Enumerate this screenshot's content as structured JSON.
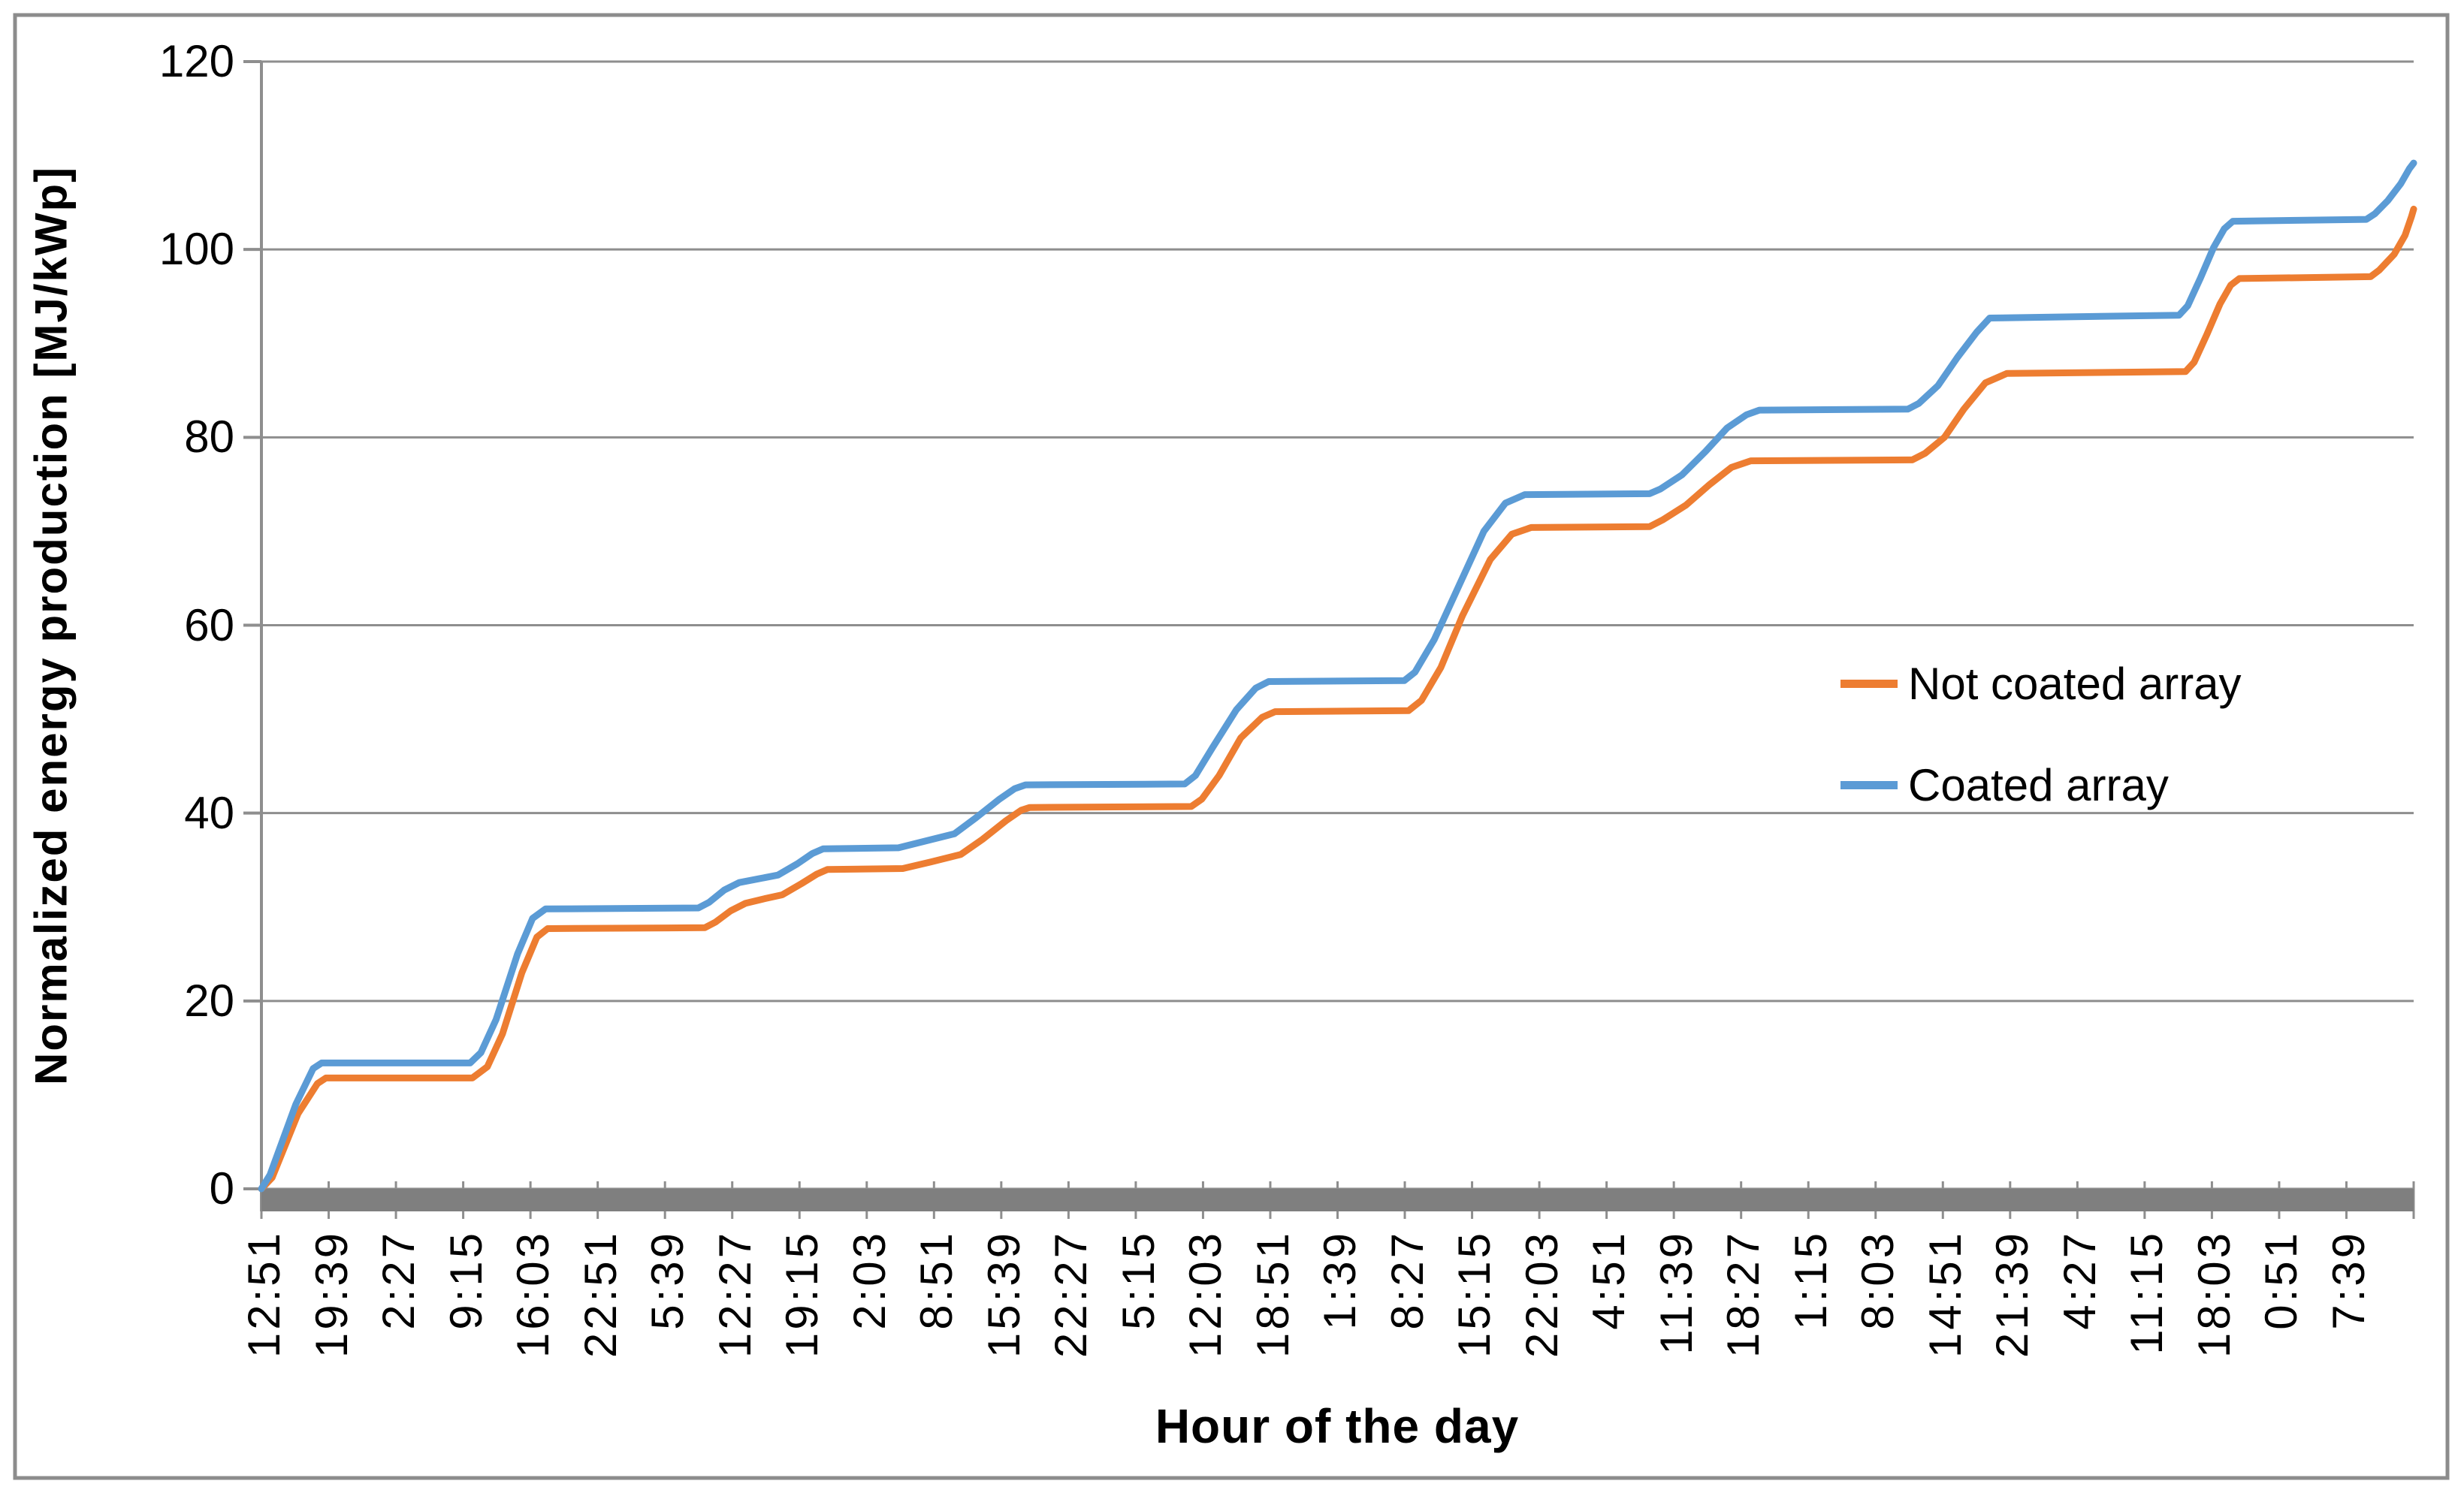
{
  "figure": {
    "background": "#ffffff",
    "border_color": "#8c8c8c",
    "gridline_color": "#8e8e8e",
    "axis_color": "#8e8e8e",
    "x_band_color": "#7f7f7f",
    "text_color": "#000000"
  },
  "chart_data": {
    "type": "line",
    "title": "",
    "xlabel": "Hour of the day",
    "ylabel": "Normalized energy production [MJ/kWp]",
    "ylim": [
      0,
      120
    ],
    "y_ticks": [
      0,
      20,
      40,
      60,
      80,
      100,
      120
    ],
    "grid": "horizontal",
    "legend_position": "middle-right",
    "x_label_rotation": -90,
    "x_tick_labels": [
      "12:51",
      "19:39",
      "2:27",
      "9:15",
      "16:03",
      "22:51",
      "5:39",
      "12:27",
      "19:15",
      "2:03",
      "8:51",
      "15:39",
      "22:27",
      "5:15",
      "12:03",
      "18:51",
      "1:39",
      "8:27",
      "15:15",
      "22:03",
      "4:51",
      "11:39",
      "18:27",
      "1:15",
      "8:03",
      "14:51",
      "21:39",
      "4:27",
      "11:15",
      "18:03",
      "0:51",
      "7:39"
    ],
    "series": [
      {
        "name": "Not coated array",
        "color": "#ED7D31",
        "points": [
          [
            0.0,
            0
          ],
          [
            0.005,
            1.2
          ],
          [
            0.017,
            8
          ],
          [
            0.026,
            11.2
          ],
          [
            0.03,
            11.8
          ],
          [
            0.098,
            11.8
          ],
          [
            0.105,
            13
          ],
          [
            0.112,
            16.5
          ],
          [
            0.121,
            23
          ],
          [
            0.128,
            26.8
          ],
          [
            0.133,
            27.7
          ],
          [
            0.206,
            27.8
          ],
          [
            0.211,
            28.4
          ],
          [
            0.218,
            29.6
          ],
          [
            0.225,
            30.4
          ],
          [
            0.234,
            30.9
          ],
          [
            0.242,
            31.3
          ],
          [
            0.251,
            32.5
          ],
          [
            0.258,
            33.5
          ],
          [
            0.263,
            34.0
          ],
          [
            0.298,
            34.1
          ],
          [
            0.311,
            34.8
          ],
          [
            0.325,
            35.6
          ],
          [
            0.335,
            37.2
          ],
          [
            0.346,
            39.2
          ],
          [
            0.353,
            40.3
          ],
          [
            0.357,
            40.6
          ],
          [
            0.432,
            40.7
          ],
          [
            0.437,
            41.5
          ],
          [
            0.445,
            44
          ],
          [
            0.455,
            48
          ],
          [
            0.465,
            50.2
          ],
          [
            0.471,
            50.8
          ],
          [
            0.533,
            50.9
          ],
          [
            0.539,
            52
          ],
          [
            0.548,
            55.5
          ],
          [
            0.558,
            61
          ],
          [
            0.571,
            67
          ],
          [
            0.581,
            69.7
          ],
          [
            0.59,
            70.4
          ],
          [
            0.645,
            70.5
          ],
          [
            0.651,
            71.2
          ],
          [
            0.662,
            72.8
          ],
          [
            0.673,
            75
          ],
          [
            0.683,
            76.8
          ],
          [
            0.692,
            77.5
          ],
          [
            0.767,
            77.6
          ],
          [
            0.773,
            78.3
          ],
          [
            0.782,
            80
          ],
          [
            0.791,
            83
          ],
          [
            0.801,
            85.8
          ],
          [
            0.811,
            86.8
          ],
          [
            0.894,
            87.0
          ],
          [
            0.898,
            88
          ],
          [
            0.904,
            91
          ],
          [
            0.91,
            94.2
          ],
          [
            0.915,
            96.2
          ],
          [
            0.919,
            96.9
          ],
          [
            0.98,
            97.1
          ],
          [
            0.984,
            97.8
          ],
          [
            0.991,
            99.5
          ],
          [
            0.996,
            101.5
          ],
          [
            0.999,
            103.5
          ],
          [
            1.0,
            104.3
          ]
        ]
      },
      {
        "name": "Coated array",
        "color": "#5B9BD5",
        "points": [
          [
            0.0,
            0
          ],
          [
            0.004,
            1.5
          ],
          [
            0.016,
            9
          ],
          [
            0.024,
            12.8
          ],
          [
            0.028,
            13.4
          ],
          [
            0.097,
            13.4
          ],
          [
            0.102,
            14.5
          ],
          [
            0.109,
            18
          ],
          [
            0.119,
            25
          ],
          [
            0.126,
            28.8
          ],
          [
            0.132,
            29.8
          ],
          [
            0.203,
            29.9
          ],
          [
            0.208,
            30.5
          ],
          [
            0.215,
            31.8
          ],
          [
            0.222,
            32.6
          ],
          [
            0.231,
            33.0
          ],
          [
            0.24,
            33.4
          ],
          [
            0.249,
            34.6
          ],
          [
            0.256,
            35.7
          ],
          [
            0.261,
            36.2
          ],
          [
            0.296,
            36.3
          ],
          [
            0.308,
            37.0
          ],
          [
            0.322,
            37.8
          ],
          [
            0.332,
            39.5
          ],
          [
            0.343,
            41.5
          ],
          [
            0.35,
            42.6
          ],
          [
            0.355,
            43.0
          ],
          [
            0.429,
            43.1
          ],
          [
            0.434,
            44
          ],
          [
            0.442,
            47
          ],
          [
            0.453,
            51
          ],
          [
            0.462,
            53.3
          ],
          [
            0.468,
            54.0
          ],
          [
            0.531,
            54.1
          ],
          [
            0.536,
            55
          ],
          [
            0.545,
            58.5
          ],
          [
            0.556,
            64
          ],
          [
            0.568,
            70
          ],
          [
            0.578,
            73
          ],
          [
            0.587,
            73.9
          ],
          [
            0.645,
            74.0
          ],
          [
            0.65,
            74.5
          ],
          [
            0.66,
            76
          ],
          [
            0.671,
            78.5
          ],
          [
            0.681,
            81
          ],
          [
            0.69,
            82.4
          ],
          [
            0.696,
            82.9
          ],
          [
            0.765,
            83.0
          ],
          [
            0.77,
            83.6
          ],
          [
            0.779,
            85.5
          ],
          [
            0.788,
            88.5
          ],
          [
            0.797,
            91.2
          ],
          [
            0.803,
            92.7
          ],
          [
            0.891,
            93.0
          ],
          [
            0.895,
            94
          ],
          [
            0.901,
            97
          ],
          [
            0.907,
            100.2
          ],
          [
            0.912,
            102.2
          ],
          [
            0.916,
            103.0
          ],
          [
            0.978,
            103.2
          ],
          [
            0.982,
            103.8
          ],
          [
            0.988,
            105.2
          ],
          [
            0.994,
            107
          ],
          [
            0.998,
            108.6
          ],
          [
            1.0,
            109.2
          ]
        ]
      }
    ]
  },
  "legend": {
    "items": [
      {
        "label": "Not coated array"
      },
      {
        "label": "Coated array"
      }
    ]
  }
}
